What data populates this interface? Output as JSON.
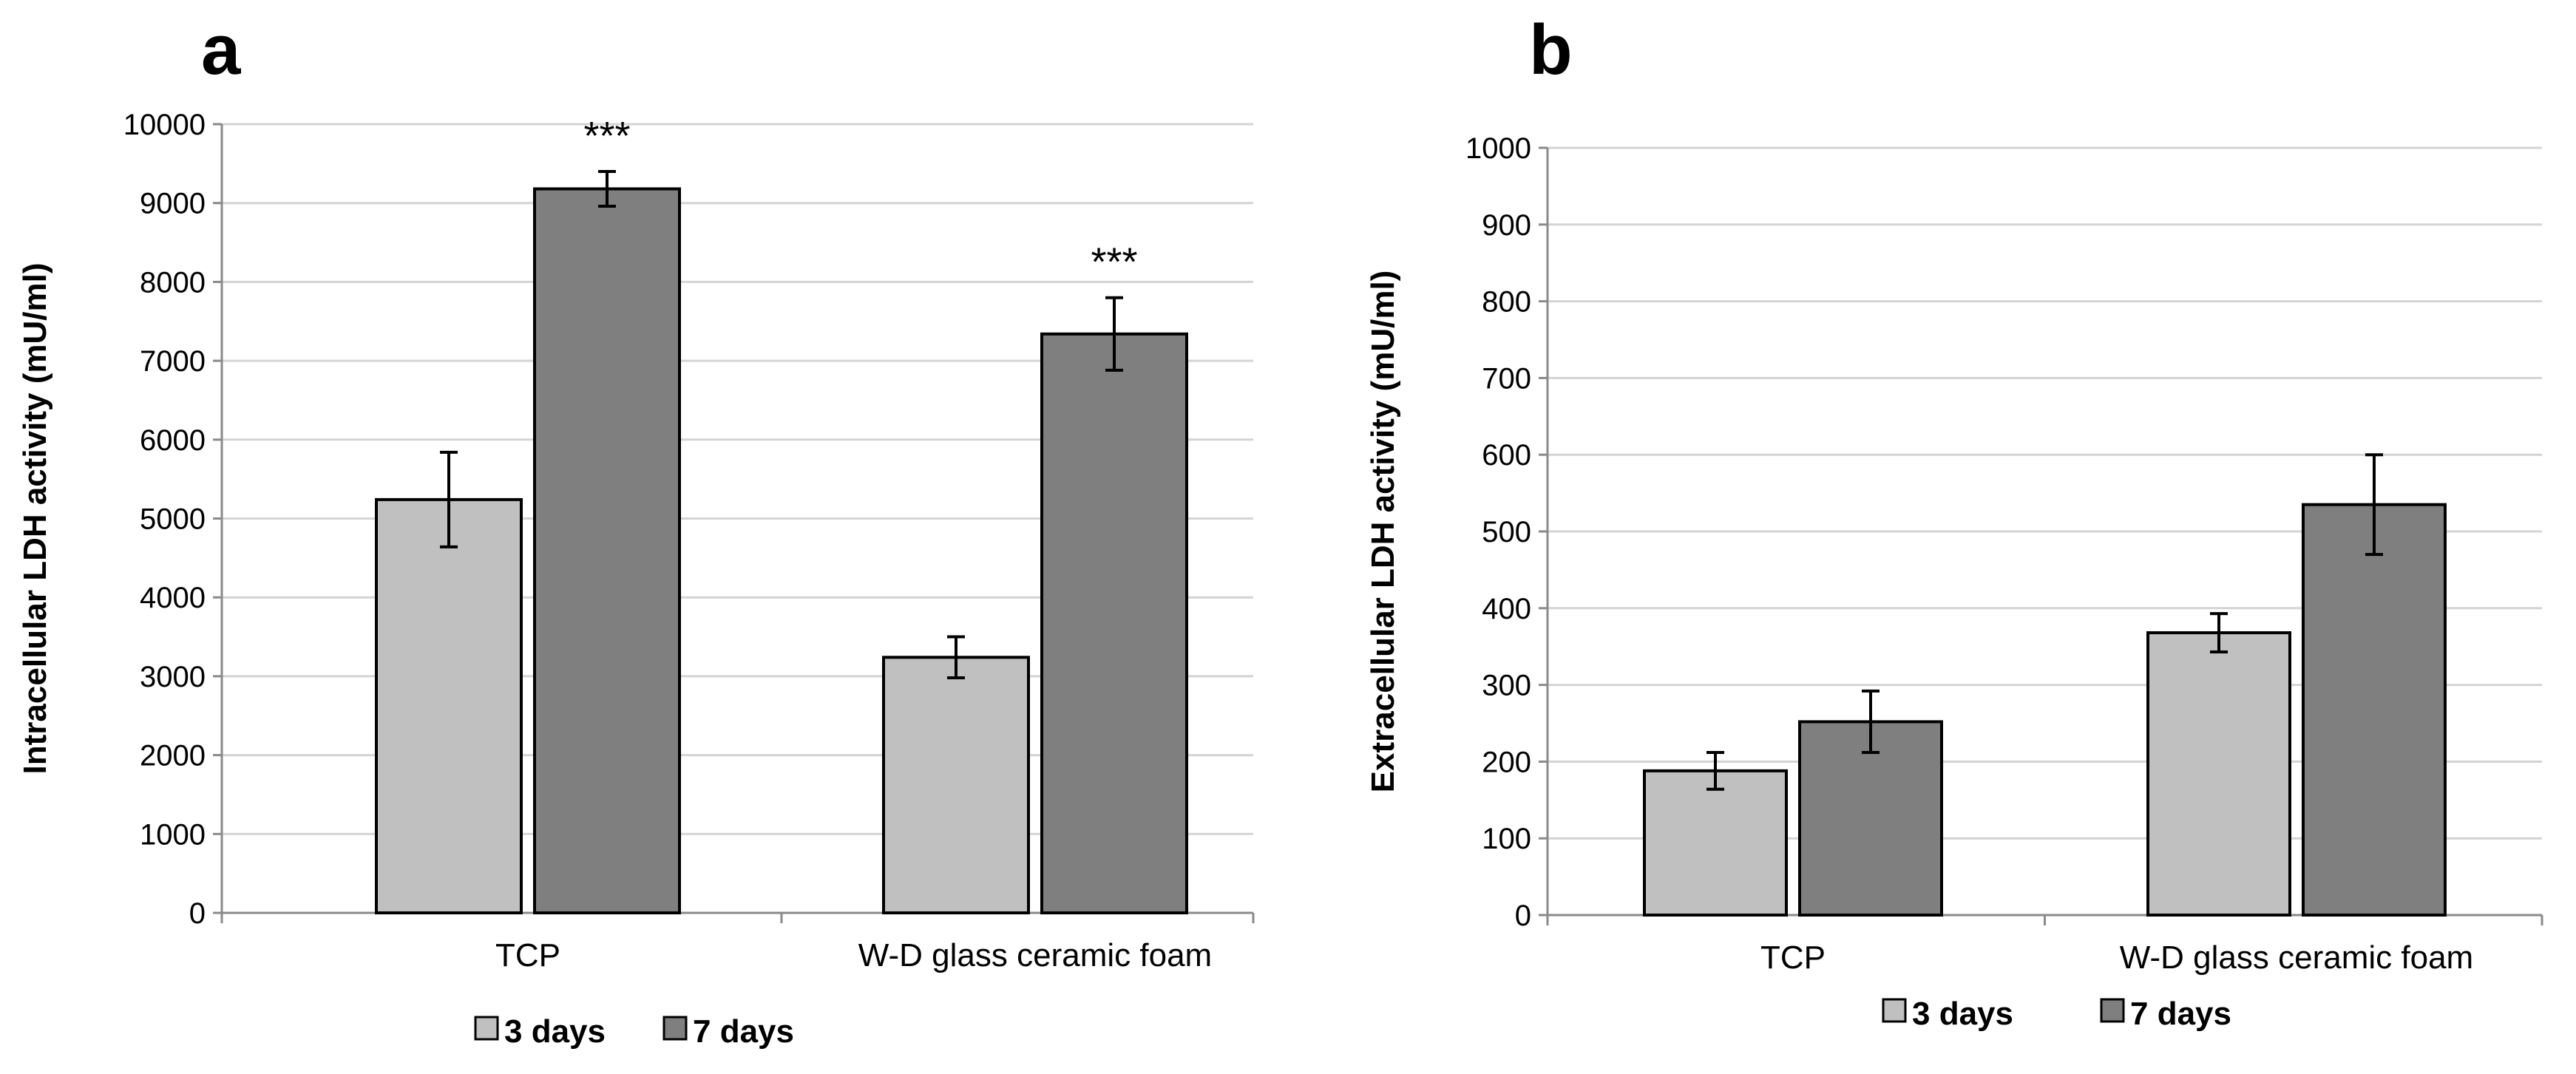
{
  "chart_data": [
    {
      "type": "bar",
      "panel": "a",
      "ylabel": "Intracellular LDH activity (mU/ml)",
      "xlabel": "",
      "categories": [
        "TCP",
        "W-D glass ceramic foam"
      ],
      "ylim": [
        0,
        10000
      ],
      "ytick_step": 1000,
      "yticks": [
        "0",
        "1000",
        "2000",
        "3000",
        "4000",
        "5000",
        "6000",
        "7000",
        "8000",
        "9000",
        "10000"
      ],
      "grid": true,
      "legend_position": "bottom",
      "series": [
        {
          "name": "3 days",
          "color": "#c0c0c0",
          "values": [
            5240,
            3240
          ],
          "errors": [
            600,
            260
          ]
        },
        {
          "name": "7 days",
          "color": "#7f7f7f",
          "values": [
            9180,
            7340
          ],
          "errors": [
            220,
            460
          ]
        }
      ],
      "annotations": [
        {
          "text": "***",
          "series": 1,
          "category": 0
        },
        {
          "text": "***",
          "series": 1,
          "category": 1
        }
      ]
    },
    {
      "type": "bar",
      "panel": "b",
      "ylabel": "Extracellular LDH activity (mU/ml)",
      "xlabel": "",
      "categories": [
        "TCP",
        "W-D glass ceramic foam"
      ],
      "ylim": [
        0,
        1000
      ],
      "ytick_step": 100,
      "yticks": [
        "0",
        "100",
        "200",
        "300",
        "400",
        "500",
        "600",
        "700",
        "800",
        "900",
        "1000"
      ],
      "grid": true,
      "legend_position": "bottom",
      "series": [
        {
          "name": "3 days",
          "color": "#c0c0c0",
          "values": [
            188,
            368
          ],
          "errors": [
            24,
            25
          ]
        },
        {
          "name": "7 days",
          "color": "#7f7f7f",
          "values": [
            252,
            535
          ],
          "errors": [
            40,
            65
          ]
        }
      ],
      "annotations": []
    }
  ]
}
